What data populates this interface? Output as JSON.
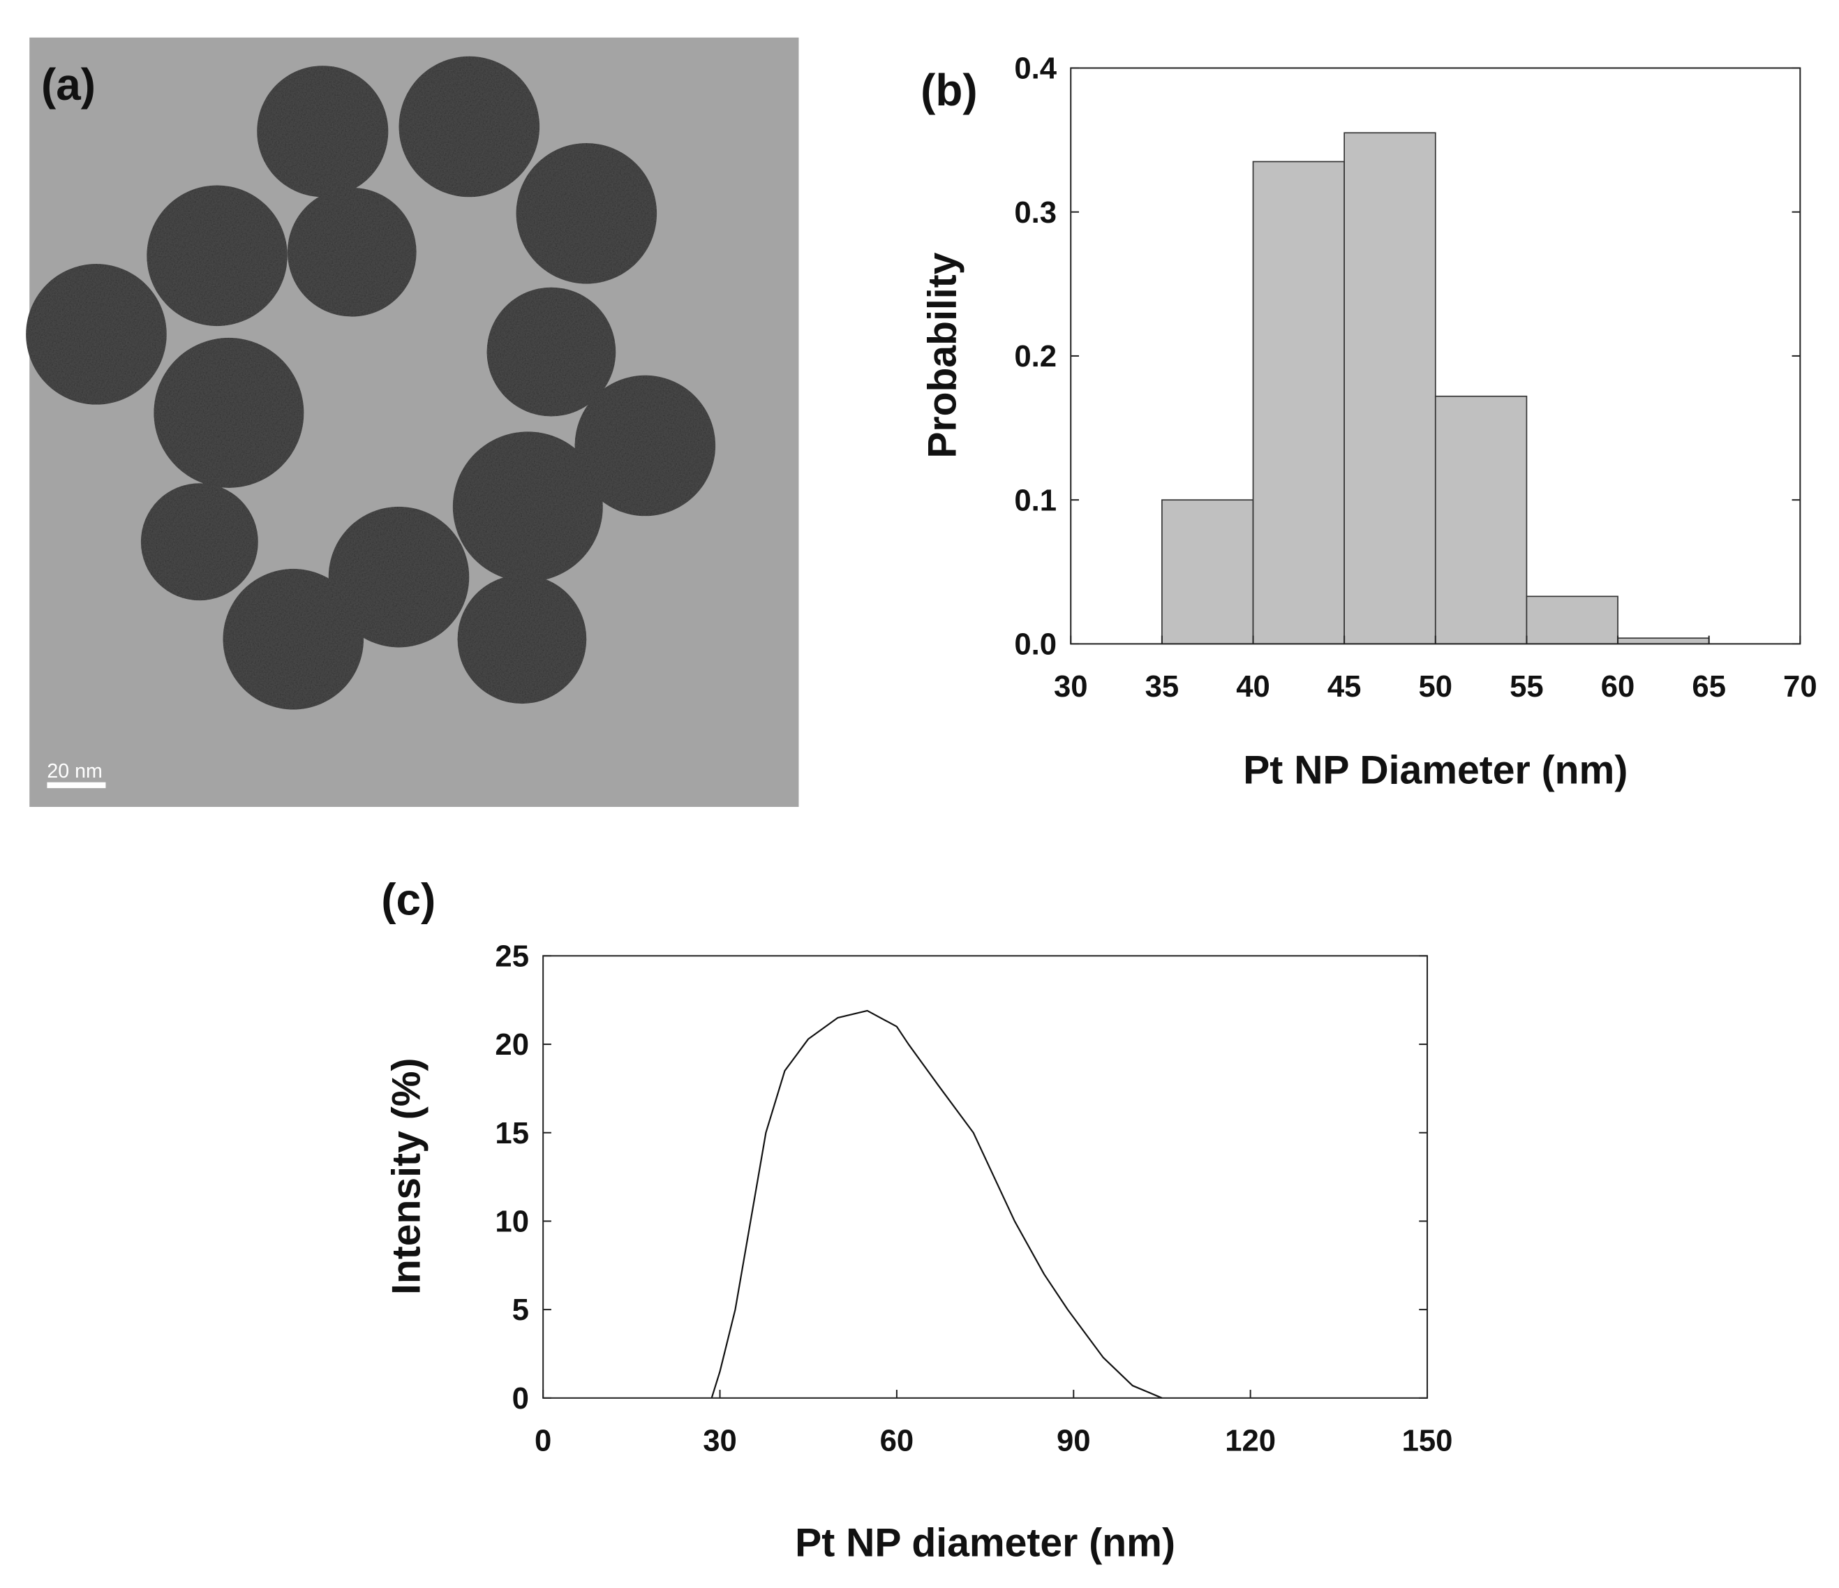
{
  "image": {
    "label": "(a)",
    "scale_bar": "20 nm"
  },
  "chart_data": [
    {
      "type": "histogram",
      "panel_label": "(b)",
      "x_label": "Pt NP Diameter (nm)",
      "y_label": "Probability",
      "bins": [
        35,
        40,
        45,
        50,
        55,
        60,
        65
      ],
      "values": [
        0.1,
        0.335,
        0.355,
        0.172,
        0.033,
        0.004
      ],
      "color": "#c0c0c0",
      "xlim": [
        30,
        70
      ],
      "xticks": [
        30,
        35,
        40,
        45,
        50,
        55,
        60,
        65,
        70
      ],
      "ylim": [
        0,
        0.4
      ],
      "yticks": [
        {
          "value": 0,
          "label": "0.0"
        },
        0.1,
        0.2,
        0.3,
        0.4
      ]
    },
    {
      "type": "line",
      "panel_label": "(c)",
      "x_label": "Pt NP diameter (nm)",
      "y_label": "Intensity (%)",
      "x": [
        28.6,
        30,
        32.6,
        35.2,
        37.8,
        41,
        45,
        50,
        55,
        60,
        62,
        67,
        73,
        80,
        85,
        89,
        95,
        100,
        105
      ],
      "values": [
        0,
        1.5,
        5,
        10,
        15,
        18.5,
        20.3,
        21.5,
        21.9,
        21,
        20,
        17.7,
        15,
        10,
        7,
        5,
        2.3,
        0.7,
        0
      ],
      "color": "#111111",
      "xlim": [
        0,
        150
      ],
      "xticks": [
        0,
        30,
        60,
        90,
        120,
        150
      ],
      "ylim": [
        0,
        25
      ],
      "yticks": [
        0,
        5,
        10,
        15,
        20,
        25
      ]
    }
  ]
}
